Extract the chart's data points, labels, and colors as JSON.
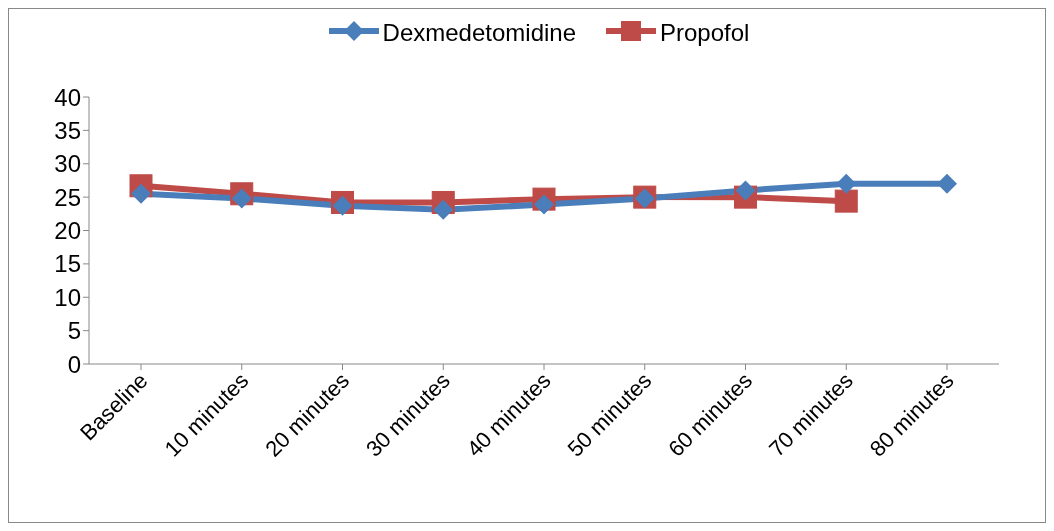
{
  "chart_data": {
    "type": "line",
    "categories": [
      "Baseline",
      "10 minutes",
      "20 minutes",
      "30 minutes",
      "40 minutes",
      "50 minutes",
      "60 minutes",
      "70 minutes",
      "80 minutes"
    ],
    "series": [
      {
        "name": "Dexmedetomidine",
        "color": "#4a7ebb",
        "marker": "diamond",
        "values": [
          25.5,
          24.8,
          23.7,
          23.1,
          23.9,
          24.8,
          26,
          27,
          27
        ]
      },
      {
        "name": "Propofol",
        "color": "#be4b48",
        "marker": "square",
        "values": [
          26.7,
          25.5,
          24.2,
          24.2,
          24.7,
          25,
          25,
          24.4,
          null
        ]
      }
    ],
    "ylim": [
      0,
      40
    ],
    "yticks": [
      0,
      5,
      10,
      15,
      20,
      25,
      30,
      35,
      40
    ],
    "grid": false,
    "legend": "top"
  }
}
